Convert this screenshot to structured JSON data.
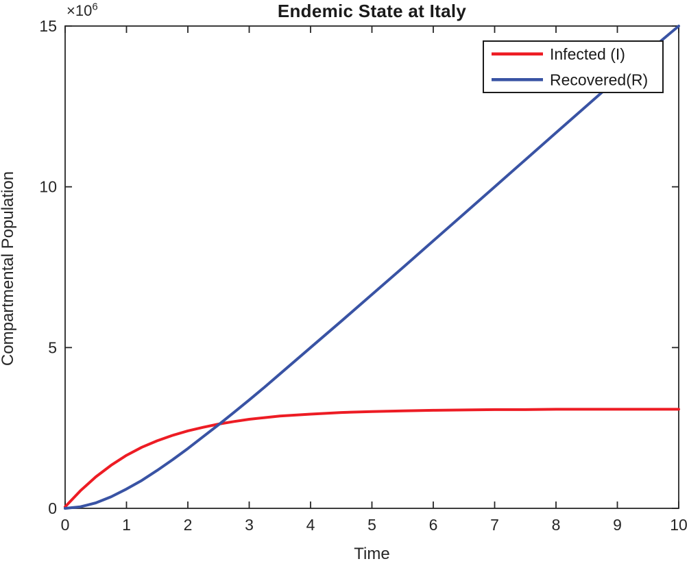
{
  "figure": {
    "title": "Endemic State at Italy",
    "xlabel": "Time",
    "ylabel": "Compartmental Population",
    "y_exponent_base": "×10",
    "y_exponent_power": "6"
  },
  "colors": {
    "infected_line": "#ED1C24",
    "recovered_line": "#3953A4",
    "axis": "#262626",
    "text": "#1a1a1a",
    "background": "#ffffff",
    "legend_border": "#1a1a1a"
  },
  "chart_data": {
    "type": "line",
    "title": "Endemic State at Italy",
    "xlabel": "Time",
    "ylabel": "Compartmental Population",
    "grid": false,
    "legend_position": "top-right",
    "xlim": [
      0,
      10
    ],
    "ylim_millions": [
      0,
      15
    ],
    "y_unit_label": "×10⁶",
    "x_ticks": [
      0,
      1,
      2,
      3,
      4,
      5,
      6,
      7,
      8,
      9,
      10
    ],
    "x_tick_labels": [
      "0",
      "1",
      "2",
      "3",
      "4",
      "5",
      "6",
      "7",
      "8",
      "9",
      "10"
    ],
    "y_ticks_millions": [
      0,
      5,
      10,
      15
    ],
    "y_tick_labels": [
      "0",
      "5",
      "10",
      "15"
    ],
    "series": [
      {
        "name": "Infected (I)",
        "color": "#ED1C24",
        "x": [
          0,
          0.25,
          0.5,
          0.75,
          1,
          1.25,
          1.5,
          1.75,
          2,
          2.25,
          2.5,
          2.75,
          3,
          3.25,
          3.5,
          4,
          4.5,
          5,
          5.5,
          6,
          6.5,
          7,
          7.5,
          8,
          8.5,
          9,
          9.5,
          10
        ],
        "y_millions": [
          0.05,
          0.55,
          0.98,
          1.34,
          1.65,
          1.9,
          2.1,
          2.27,
          2.41,
          2.52,
          2.62,
          2.7,
          2.77,
          2.82,
          2.87,
          2.93,
          2.98,
          3.01,
          3.03,
          3.05,
          3.06,
          3.07,
          3.07,
          3.08,
          3.08,
          3.08,
          3.08,
          3.08
        ]
      },
      {
        "name": "Recovered(R)",
        "color": "#3953A4",
        "x": [
          0,
          0.25,
          0.5,
          0.75,
          1,
          1.25,
          1.5,
          1.75,
          2,
          2.25,
          2.5,
          2.75,
          3,
          3.25,
          3.5,
          4,
          4.5,
          5,
          5.5,
          6,
          6.5,
          7,
          7.5,
          8,
          8.5,
          9,
          9.5,
          10
        ],
        "y_millions": [
          0,
          0.05,
          0.17,
          0.36,
          0.6,
          0.87,
          1.18,
          1.51,
          1.86,
          2.23,
          2.6,
          2.98,
          3.37,
          3.77,
          4.18,
          5.0,
          5.82,
          6.65,
          7.48,
          8.32,
          9.16,
          10.0,
          10.84,
          11.68,
          12.52,
          13.36,
          14.2,
          15.0
        ]
      }
    ],
    "annotations": {
      "infected_plateau_millions": 3.08,
      "curves_cross_at": {
        "t": 2.48,
        "value_millions": 2.6
      }
    }
  }
}
